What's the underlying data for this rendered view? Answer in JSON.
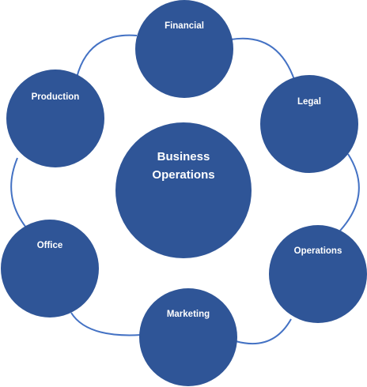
{
  "diagram": {
    "center": {
      "label_line1": "Business",
      "label_line2": "Operations"
    },
    "nodes": [
      {
        "id": "financial",
        "label": "Financial"
      },
      {
        "id": "legal",
        "label": "Legal"
      },
      {
        "id": "operations",
        "label": "Operations"
      },
      {
        "id": "marketing",
        "label": "Marketing"
      },
      {
        "id": "office",
        "label": "Office"
      },
      {
        "id": "production",
        "label": "Production"
      }
    ],
    "colors": {
      "node_fill": "#2f5597",
      "connector": "#4472c4",
      "text": "#ffffff"
    }
  }
}
